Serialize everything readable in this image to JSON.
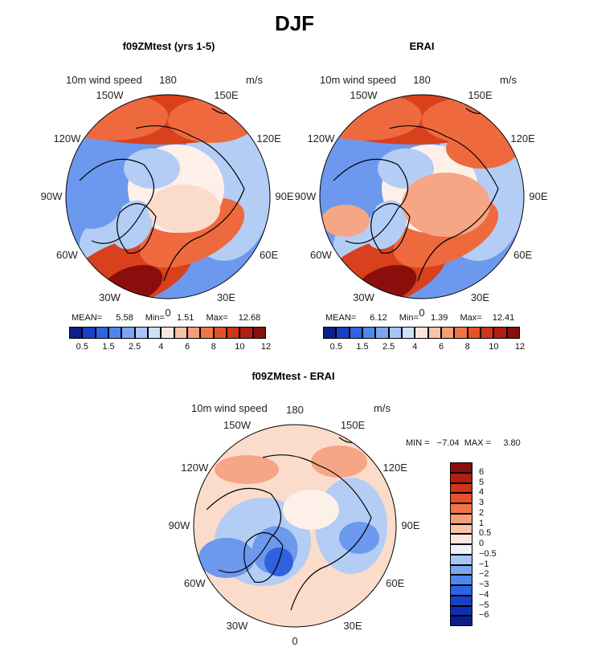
{
  "figure": {
    "title": "DJF"
  },
  "panels": [
    {
      "id": "model",
      "title": "f09ZMtest (yrs 1-5)",
      "variable": "10m wind speed",
      "units": "m/s",
      "stats": {
        "mean_label": "MEAN=",
        "mean": "5.58",
        "min_label": "Min=",
        "min": "1.51",
        "max_label": "Max=",
        "max": "12.68"
      }
    },
    {
      "id": "obs",
      "title": "ERAI",
      "variable": "10m wind speed",
      "units": "m/s",
      "stats": {
        "mean_label": "MEAN=",
        "mean": "6.12",
        "min_label": "Min=",
        "min": "1.39",
        "max_label": "Max=",
        "max": "12.41"
      }
    },
    {
      "id": "diff",
      "title": "f09ZMtest - ERAI",
      "variable": "10m wind speed",
      "units": "m/s",
      "stats_text": "MIN =   −7.04  MAX =     3.80"
    }
  ],
  "longitude_labels": [
    "180",
    "150E",
    "120E",
    "90E",
    "60E",
    "30E",
    "0",
    "30W",
    "60W",
    "90W",
    "120W",
    "150W"
  ],
  "colorbar_abs": {
    "ticks": [
      "0.5",
      "1.5",
      "2.5",
      "4",
      "6",
      "8",
      "10",
      "12"
    ],
    "colors": [
      "#0a1e8c",
      "#1a3fc7",
      "#2e63e6",
      "#4d86f0",
      "#7aa6f4",
      "#a7c5f7",
      "#cfe0fa",
      "#fbe6dc",
      "#f8c3a9",
      "#f59c79",
      "#f17448",
      "#e6502a",
      "#cf3519",
      "#b11f12",
      "#8a0e0b"
    ]
  },
  "colorbar_diff": {
    "ticks": [
      "6",
      "5",
      "4",
      "3",
      "2",
      "1",
      "0.5",
      "0",
      "−0.5",
      "−1",
      "−2",
      "−3",
      "−4",
      "−5",
      "−6"
    ],
    "colors": [
      "#8a0e0b",
      "#b11f12",
      "#cf3519",
      "#e6502a",
      "#f17448",
      "#f59c79",
      "#f8c3a9",
      "#fbe6dc",
      "#eef3fb",
      "#a7c5f7",
      "#7aa6f4",
      "#4d86f0",
      "#2e63e6",
      "#1a3fc7",
      "#0d2fb0",
      "#0a1e8c"
    ]
  },
  "field_colors": {
    "red_dark": "#8a0e0b",
    "red": "#d8401e",
    "red_mid": "#ee6a3e",
    "salmon": "#f6a585",
    "peach": "#fbdccb",
    "pale": "#fdf0e8",
    "lightblue": "#b3cdf5",
    "blue": "#6c99ee",
    "blue_dark": "#2f62dc"
  }
}
